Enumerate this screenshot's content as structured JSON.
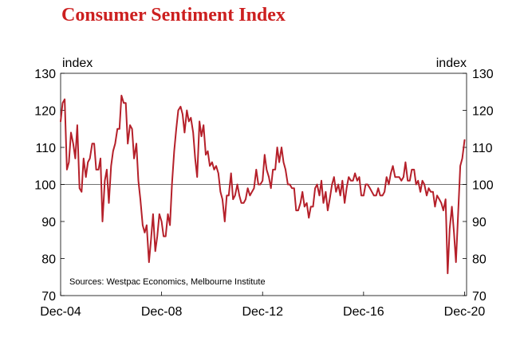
{
  "chart_data": {
    "type": "line",
    "title": "Consumer Sentiment Index",
    "ylabel_left": "index",
    "ylabel_right": "index",
    "ylim": [
      70,
      130
    ],
    "yticks": [
      70,
      80,
      90,
      100,
      110,
      120,
      130
    ],
    "x_range": [
      2004.92,
      2021.0
    ],
    "x_ticks": [
      {
        "label": "Dec-04",
        "x": 2004.92
      },
      {
        "label": "Dec-08",
        "x": 2008.92
      },
      {
        "label": "Dec-12",
        "x": 2012.92
      },
      {
        "label": "Dec-16",
        "x": 2016.92
      },
      {
        "label": "Dec-20",
        "x": 2020.92
      }
    ],
    "reference_line": 100,
    "source_note": "Sources: Westpac Economics, Melbourne Institute",
    "series": [
      {
        "name": "Consumer Sentiment Index",
        "color": "#b5202a",
        "points": [
          [
            2004.92,
            117.0
          ],
          [
            2005.0,
            122.0
          ],
          [
            2005.08,
            123.0
          ],
          [
            2005.17,
            104.0
          ],
          [
            2005.25,
            106.0
          ],
          [
            2005.33,
            114.0
          ],
          [
            2005.42,
            111.0
          ],
          [
            2005.5,
            107.0
          ],
          [
            2005.58,
            116.0
          ],
          [
            2005.67,
            99.0
          ],
          [
            2005.75,
            98.0
          ],
          [
            2005.83,
            107.0
          ],
          [
            2005.92,
            102.0
          ],
          [
            2006.0,
            106.0
          ],
          [
            2006.08,
            107.0
          ],
          [
            2006.17,
            111.0
          ],
          [
            2006.25,
            111.0
          ],
          [
            2006.33,
            104.0
          ],
          [
            2006.42,
            104.0
          ],
          [
            2006.5,
            107.0
          ],
          [
            2006.58,
            90.0
          ],
          [
            2006.67,
            101.0
          ],
          [
            2006.75,
            104.0
          ],
          [
            2006.83,
            95.0
          ],
          [
            2006.92,
            105.0
          ],
          [
            2007.0,
            109.0
          ],
          [
            2007.08,
            111.0
          ],
          [
            2007.17,
            115.0
          ],
          [
            2007.25,
            115.0
          ],
          [
            2007.33,
            124.0
          ],
          [
            2007.42,
            122.0
          ],
          [
            2007.5,
            122.0
          ],
          [
            2007.58,
            111.0
          ],
          [
            2007.67,
            116.0
          ],
          [
            2007.75,
            115.0
          ],
          [
            2007.83,
            107.0
          ],
          [
            2007.92,
            111.0
          ],
          [
            2008.0,
            101.0
          ],
          [
            2008.08,
            96.0
          ],
          [
            2008.17,
            89.0
          ],
          [
            2008.25,
            87.0
          ],
          [
            2008.33,
            89.0
          ],
          [
            2008.42,
            79.0
          ],
          [
            2008.5,
            85.0
          ],
          [
            2008.58,
            92.0
          ],
          [
            2008.67,
            82.0
          ],
          [
            2008.75,
            86.0
          ],
          [
            2008.83,
            92.0
          ],
          [
            2008.92,
            90.0
          ],
          [
            2009.0,
            86.0
          ],
          [
            2009.08,
            86.0
          ],
          [
            2009.17,
            92.0
          ],
          [
            2009.25,
            89.0
          ],
          [
            2009.33,
            100.0
          ],
          [
            2009.42,
            109.0
          ],
          [
            2009.5,
            115.0
          ],
          [
            2009.58,
            120.0
          ],
          [
            2009.67,
            121.0
          ],
          [
            2009.75,
            119.0
          ],
          [
            2009.83,
            114.0
          ],
          [
            2009.92,
            120.0
          ],
          [
            2010.0,
            117.0
          ],
          [
            2010.08,
            118.0
          ],
          [
            2010.17,
            114.0
          ],
          [
            2010.25,
            107.0
          ],
          [
            2010.33,
            102.0
          ],
          [
            2010.42,
            117.0
          ],
          [
            2010.5,
            113.0
          ],
          [
            2010.58,
            116.0
          ],
          [
            2010.67,
            108.0
          ],
          [
            2010.75,
            109.0
          ],
          [
            2010.83,
            105.0
          ],
          [
            2010.92,
            106.0
          ],
          [
            2011.0,
            104.0
          ],
          [
            2011.08,
            105.0
          ],
          [
            2011.17,
            103.0
          ],
          [
            2011.25,
            98.0
          ],
          [
            2011.33,
            96.0
          ],
          [
            2011.42,
            90.0
          ],
          [
            2011.5,
            97.0
          ],
          [
            2011.58,
            97.0
          ],
          [
            2011.67,
            103.0
          ],
          [
            2011.75,
            96.0
          ],
          [
            2011.83,
            97.0
          ],
          [
            2011.92,
            100.0
          ],
          [
            2012.0,
            97.0
          ],
          [
            2012.08,
            95.0
          ],
          [
            2012.17,
            95.0
          ],
          [
            2012.25,
            96.0
          ],
          [
            2012.33,
            99.0
          ],
          [
            2012.42,
            97.0
          ],
          [
            2012.5,
            98.0
          ],
          [
            2012.58,
            99.0
          ],
          [
            2012.67,
            104.0
          ],
          [
            2012.75,
            100.0
          ],
          [
            2012.83,
            100.0
          ],
          [
            2012.92,
            101.0
          ],
          [
            2013.0,
            108.0
          ],
          [
            2013.08,
            104.0
          ],
          [
            2013.17,
            102.0
          ],
          [
            2013.25,
            99.0
          ],
          [
            2013.33,
            104.0
          ],
          [
            2013.42,
            104.0
          ],
          [
            2013.5,
            110.0
          ],
          [
            2013.58,
            106.0
          ],
          [
            2013.67,
            110.0
          ],
          [
            2013.75,
            106.0
          ],
          [
            2013.83,
            104.0
          ],
          [
            2013.92,
            100.0
          ],
          [
            2014.0,
            100.0
          ],
          [
            2014.08,
            99.0
          ],
          [
            2014.17,
            99.0
          ],
          [
            2014.25,
            93.0
          ],
          [
            2014.33,
            93.0
          ],
          [
            2014.42,
            95.0
          ],
          [
            2014.5,
            98.0
          ],
          [
            2014.58,
            94.0
          ],
          [
            2014.67,
            95.0
          ],
          [
            2014.75,
            91.0
          ],
          [
            2014.83,
            94.0
          ],
          [
            2014.92,
            94.0
          ],
          [
            2015.0,
            99.0
          ],
          [
            2015.08,
            100.0
          ],
          [
            2015.17,
            97.0
          ],
          [
            2015.25,
            101.0
          ],
          [
            2015.33,
            95.0
          ],
          [
            2015.42,
            98.0
          ],
          [
            2015.5,
            93.0
          ],
          [
            2015.58,
            96.0
          ],
          [
            2015.67,
            100.0
          ],
          [
            2015.75,
            102.0
          ],
          [
            2015.83,
            98.0
          ],
          [
            2015.92,
            100.0
          ],
          [
            2016.0,
            97.0
          ],
          [
            2016.08,
            101.0
          ],
          [
            2016.17,
            95.0
          ],
          [
            2016.25,
            99.0
          ],
          [
            2016.33,
            102.0
          ],
          [
            2016.42,
            101.0
          ],
          [
            2016.5,
            101.0
          ],
          [
            2016.58,
            103.0
          ],
          [
            2016.67,
            101.0
          ],
          [
            2016.75,
            102.0
          ],
          [
            2016.83,
            97.0
          ],
          [
            2016.92,
            97.0
          ],
          [
            2017.0,
            100.0
          ],
          [
            2017.08,
            100.0
          ],
          [
            2017.17,
            99.0
          ],
          [
            2017.25,
            98.0
          ],
          [
            2017.33,
            97.0
          ],
          [
            2017.42,
            97.0
          ],
          [
            2017.5,
            99.0
          ],
          [
            2017.58,
            97.0
          ],
          [
            2017.67,
            97.0
          ],
          [
            2017.75,
            98.0
          ],
          [
            2017.83,
            102.0
          ],
          [
            2017.92,
            100.0
          ],
          [
            2018.0,
            103.0
          ],
          [
            2018.08,
            105.0
          ],
          [
            2018.17,
            102.0
          ],
          [
            2018.25,
            102.0
          ],
          [
            2018.33,
            102.0
          ],
          [
            2018.42,
            101.0
          ],
          [
            2018.5,
            102.0
          ],
          [
            2018.58,
            106.0
          ],
          [
            2018.67,
            101.0
          ],
          [
            2018.75,
            101.0
          ],
          [
            2018.83,
            104.0
          ],
          [
            2018.92,
            104.0
          ],
          [
            2019.0,
            100.0
          ],
          [
            2019.08,
            101.0
          ],
          [
            2019.17,
            98.0
          ],
          [
            2019.25,
            101.0
          ],
          [
            2019.33,
            100.0
          ],
          [
            2019.42,
            97.0
          ],
          [
            2019.5,
            99.0
          ],
          [
            2019.58,
            98.0
          ],
          [
            2019.67,
            98.0
          ],
          [
            2019.75,
            94.0
          ],
          [
            2019.83,
            97.0
          ],
          [
            2019.92,
            96.0
          ],
          [
            2020.0,
            95.0
          ],
          [
            2020.08,
            93.0
          ],
          [
            2020.17,
            96.0
          ],
          [
            2020.25,
            76.0
          ],
          [
            2020.33,
            88.0
          ],
          [
            2020.42,
            94.0
          ],
          [
            2020.5,
            87.0
          ],
          [
            2020.58,
            79.0
          ],
          [
            2020.67,
            93.0
          ],
          [
            2020.75,
            105.0
          ],
          [
            2020.83,
            107.0
          ],
          [
            2020.92,
            112.0
          ]
        ]
      }
    ]
  }
}
